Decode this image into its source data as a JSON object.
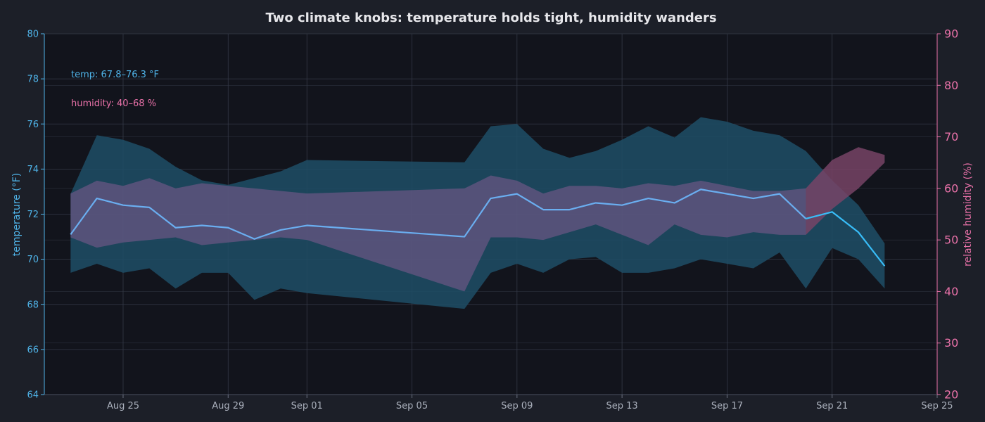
{
  "chart_data": {
    "type": "line",
    "title": "Two climate knobs: temperature holds tight, humidity wanders",
    "xlabel": "",
    "x_range": [
      "2023-08-22",
      "2023-09-25"
    ],
    "x_ticks": [
      {
        "date": "2023-08-25",
        "label": "Aug 25"
      },
      {
        "date": "2023-08-29",
        "label": "Aug 29"
      },
      {
        "date": "2023-09-01",
        "label": "Sep 01"
      },
      {
        "date": "2023-09-05",
        "label": "Sep 05"
      },
      {
        "date": "2023-09-09",
        "label": "Sep 09"
      },
      {
        "date": "2023-09-13",
        "label": "Sep 13"
      },
      {
        "date": "2023-09-17",
        "label": "Sep 17"
      },
      {
        "date": "2023-09-21",
        "label": "Sep 21"
      },
      {
        "date": "2023-09-25",
        "label": "Sep 25"
      }
    ],
    "y_left": {
      "label": "temperature (°F)",
      "range": [
        64,
        80
      ],
      "ticks": [
        64,
        66,
        68,
        70,
        72,
        74,
        76,
        78,
        80
      ]
    },
    "y_right": {
      "label": "relative humidity (%)",
      "range": [
        20,
        90
      ],
      "ticks": [
        20,
        30,
        40,
        50,
        60,
        70,
        80,
        90
      ]
    },
    "grid": true,
    "dates": [
      "2023-08-23",
      "2023-08-24",
      "2023-08-25",
      "2023-08-26",
      "2023-08-27",
      "2023-08-28",
      "2023-08-29",
      "2023-08-30",
      "2023-08-31",
      "2023-09-01",
      "2023-09-07",
      "2023-09-08",
      "2023-09-09",
      "2023-09-10",
      "2023-09-11",
      "2023-09-12",
      "2023-09-13",
      "2023-09-14",
      "2023-09-15",
      "2023-09-16",
      "2023-09-17",
      "2023-09-18",
      "2023-09-19",
      "2023-09-20",
      "2023-09-21",
      "2023-09-22",
      "2023-09-23"
    ],
    "temperature": {
      "mean": [
        71.1,
        72.7,
        72.4,
        72.3,
        71.4,
        71.5,
        71.4,
        70.9,
        71.3,
        71.5,
        71.0,
        72.7,
        72.9,
        72.2,
        72.2,
        72.5,
        72.4,
        72.7,
        72.5,
        73.1,
        72.9,
        72.7,
        72.9,
        71.8,
        72.1,
        71.2,
        69.7
      ],
      "min": [
        69.4,
        69.8,
        69.4,
        69.6,
        68.7,
        69.4,
        69.4,
        68.2,
        68.7,
        68.5,
        67.8,
        69.4,
        69.8,
        69.4,
        70.0,
        70.1,
        69.4,
        69.4,
        69.6,
        70.0,
        69.8,
        69.6,
        70.3,
        68.7,
        70.5,
        70.0,
        68.7
      ],
      "max": [
        72.9,
        75.5,
        75.3,
        74.9,
        74.1,
        73.5,
        73.3,
        73.6,
        73.9,
        74.4,
        74.3,
        75.9,
        76.0,
        74.9,
        74.5,
        74.8,
        75.3,
        75.9,
        75.4,
        76.3,
        76.1,
        75.7,
        75.5,
        74.8,
        73.5,
        72.4,
        70.7
      ]
    },
    "humidity": {
      "min": [
        50.5,
        48.5,
        49.5,
        50.0,
        50.5,
        49.0,
        49.5,
        50.0,
        50.5,
        50.0,
        40.0,
        50.5,
        50.5,
        50.0,
        51.5,
        53.0,
        51.0,
        49.0,
        53.0,
        51.0,
        50.5,
        51.5,
        51.0,
        51.0,
        56.0,
        60.0,
        65.0
      ],
      "max": [
        59.0,
        61.5,
        60.5,
        62.0,
        60.0,
        61.0,
        60.5,
        60.0,
        59.5,
        59.0,
        60.0,
        62.5,
        61.5,
        59.0,
        60.5,
        60.5,
        60.0,
        61.0,
        60.5,
        61.5,
        60.5,
        59.5,
        59.5,
        60.0,
        65.5,
        68.0,
        66.5
      ]
    },
    "annotations": [
      "temp: 67.8–76.3 °F",
      "humidity: 40–68 %"
    ],
    "colors": {
      "background": "#1c1f28",
      "plot_background": "#12141c",
      "grid": "#343947",
      "temperature_band": "#1f4d66",
      "humidity_band": "#7a5a8c",
      "humidity_high": "#7a3a55",
      "temp_line": "#6aaef0",
      "temp_line_end": "#38bdf8",
      "axis_left": "#4fb3e8",
      "axis_right": "#e871a8"
    }
  }
}
